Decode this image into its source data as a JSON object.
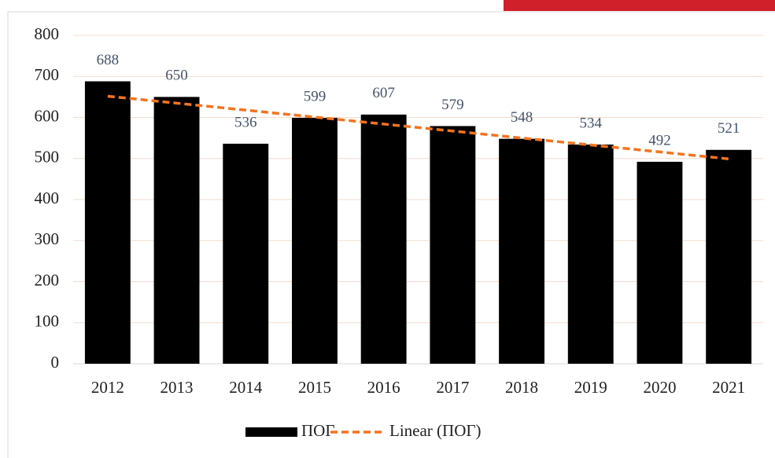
{
  "chart_data": {
    "type": "bar",
    "categories": [
      "2012",
      "2013",
      "2014",
      "2015",
      "2016",
      "2017",
      "2018",
      "2019",
      "2020",
      "2021"
    ],
    "series": [
      {
        "name": "ПОГ",
        "color": "#000000",
        "values": [
          688,
          650,
          536,
          599,
          607,
          579,
          548,
          534,
          492,
          521
        ]
      }
    ],
    "trendline": {
      "name": "Linear (ПОГ)",
      "kind": "linear",
      "color": "#f4731f"
    },
    "ylim": [
      0,
      800
    ],
    "yticks": [
      0,
      100,
      200,
      300,
      400,
      500,
      600,
      700,
      800
    ],
    "grid": true,
    "legend": "bottom"
  }
}
